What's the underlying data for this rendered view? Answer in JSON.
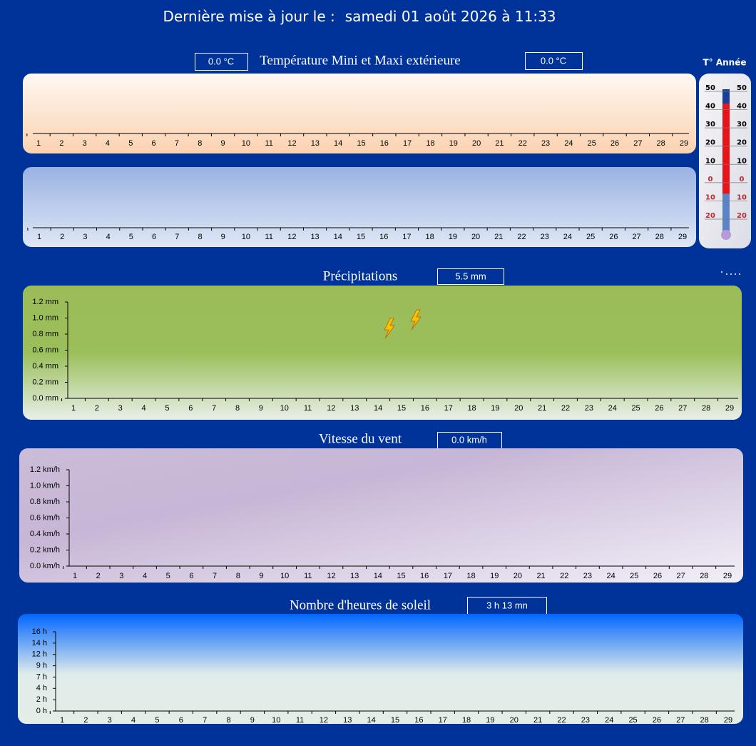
{
  "header": {
    "label": "Dernière mise à jour le :",
    "date": "samedi 01 août 2026 à 11:33"
  },
  "chart_data": [
    {
      "type": "line",
      "title": "Température Mini et Maxi extérieure",
      "min_box": "0.0 °C",
      "max_box": "0.0 °C",
      "categories": [
        1,
        2,
        3,
        4,
        5,
        6,
        7,
        8,
        9,
        10,
        11,
        12,
        13,
        14,
        15,
        16,
        17,
        18,
        19,
        20,
        21,
        22,
        23,
        24,
        25,
        26,
        27,
        28,
        29
      ]
    },
    {
      "type": "line",
      "categories": [
        1,
        2,
        3,
        4,
        5,
        6,
        7,
        8,
        9,
        10,
        11,
        12,
        13,
        14,
        15,
        16,
        17,
        18,
        19,
        20,
        21,
        22,
        23,
        24,
        25,
        26,
        27,
        28,
        29
      ]
    },
    {
      "type": "thermometer",
      "title": "T° Année",
      "ylim": [
        -20,
        50
      ],
      "yticks": [
        50,
        40,
        30,
        20,
        10,
        0,
        {
          "value": -10,
          "label": "10"
        },
        {
          "value": -20,
          "label": "20"
        }
      ],
      "min": -8,
      "max": 42,
      "color": "#e8141c",
      "tube_color": "#5a84c6"
    },
    {
      "type": "bar",
      "title": "Précipitations",
      "total": "5.5 mm",
      "color": "#4f81bd",
      "categories": [
        1,
        2,
        3,
        4,
        5,
        6,
        7,
        8,
        9,
        10,
        11,
        12,
        13,
        14,
        15,
        16,
        17,
        18,
        19,
        20,
        21,
        22,
        23,
        24,
        25,
        26,
        27,
        28,
        29
      ],
      "ylim": [
        0,
        1.2
      ],
      "yticks": [
        {
          "value": 0,
          "label": "0.0 mm"
        },
        {
          "value": 0.2,
          "label": "0.2 mm"
        },
        {
          "value": 0.4,
          "label": "0.4 mm"
        },
        {
          "value": 0.6,
          "label": "0.6 mm"
        },
        {
          "value": 0.8,
          "label": "0.8 mm"
        },
        {
          "value": 1.0,
          "label": "1.0 mm"
        },
        {
          "value": 1.2,
          "label": "1.2 mm"
        }
      ]
    },
    {
      "type": "line",
      "title": "Vitesse du vent",
      "total": "0.0 km/h",
      "categories": [
        1,
        2,
        3,
        4,
        5,
        6,
        7,
        8,
        9,
        10,
        11,
        12,
        13,
        14,
        15,
        16,
        17,
        18,
        19,
        20,
        21,
        22,
        23,
        24,
        25,
        26,
        27,
        28,
        29
      ],
      "ylim": [
        0,
        1.2
      ],
      "yticks": [
        {
          "value": 0,
          "label": "0.0 km/h"
        },
        {
          "value": 0.2,
          "label": "0.2 km/h"
        },
        {
          "value": 0.4,
          "label": "0.4 km/h"
        },
        {
          "value": 0.6,
          "label": "0.6 km/h"
        },
        {
          "value": 0.8,
          "label": "0.8 km/h"
        },
        {
          "value": 1.0,
          "label": "1.0 km/h"
        },
        {
          "value": 1.2,
          "label": "1.2 km/h"
        }
      ]
    },
    {
      "type": "bar",
      "title": "Nombre d'heures de soleil",
      "total": "3 h 13 mn",
      "color": "#ffc000",
      "categories": [
        1,
        2,
        3,
        4,
        5,
        6,
        7,
        8,
        9,
        10,
        11,
        12,
        13,
        14,
        15,
        16,
        17,
        18,
        19,
        20,
        21,
        22,
        23,
        24,
        25,
        26,
        27,
        28,
        29
      ],
      "ylim": [
        0,
        16
      ],
      "yticks": [
        {
          "value": 0,
          "label": "0 h"
        },
        {
          "value": 2.29,
          "label": "2 h"
        },
        {
          "value": 4.57,
          "label": "4 h"
        },
        {
          "value": 6.86,
          "label": "7 h"
        },
        {
          "value": 9.14,
          "label": "9 h"
        },
        {
          "value": 11.43,
          "label": "12 h"
        },
        {
          "value": 13.71,
          "label": "14 h"
        },
        {
          "value": 16,
          "label": "16 h"
        }
      ]
    }
  ]
}
